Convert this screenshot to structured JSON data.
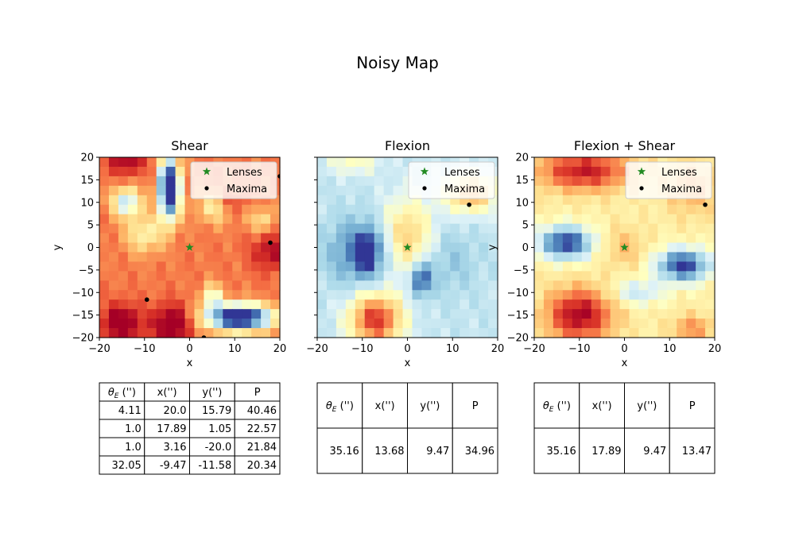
{
  "figure": {
    "title": "Noisy Map"
  },
  "chart_data": [
    {
      "type": "heatmap",
      "title": "Shear",
      "xlabel": "x",
      "ylabel": "y",
      "xlim": [
        -20,
        20
      ],
      "ylim": [
        -20,
        20
      ],
      "xticks": [
        "−20",
        "−10",
        "0",
        "10",
        "20"
      ],
      "yticks": [
        "20",
        "15",
        "10",
        "5",
        "0",
        "−5",
        "−10",
        "−15",
        "−20"
      ],
      "grid": false,
      "legend_position": "upper-right",
      "legend": [
        {
          "label": "Lenses",
          "marker": "star",
          "color": "#228b22"
        },
        {
          "label": "Maxima",
          "marker": "dot",
          "color": "#000000"
        }
      ],
      "lenses": [
        {
          "x": 0,
          "y": 0
        }
      ],
      "maxima": [
        {
          "x": 20.0,
          "y": 15.79
        },
        {
          "x": 17.89,
          "y": 1.05
        },
        {
          "x": 3.16,
          "y": -20.0
        },
        {
          "x": -9.47,
          "y": -11.58
        }
      ],
      "field": {
        "background": 0.78,
        "blobs": [
          {
            "x": -4.5,
            "y": 13,
            "sx": 1.6,
            "sy": 4.5,
            "a": -1.05
          },
          {
            "x": -14,
            "y": 10,
            "sx": 2.2,
            "sy": 2.2,
            "a": -0.45
          },
          {
            "x": 6,
            "y": 9,
            "sx": 3,
            "sy": 2.5,
            "a": -0.25
          },
          {
            "x": 11,
            "y": -15.5,
            "sx": 5,
            "sy": 2,
            "a": -0.95
          },
          {
            "x": 5,
            "y": -11,
            "sx": 1.5,
            "sy": 2,
            "a": -0.35
          },
          {
            "x": -4,
            "y": -17,
            "sx": 3,
            "sy": 3,
            "a": 0.3
          },
          {
            "x": -15,
            "y": -17,
            "sx": 3,
            "sy": 3,
            "a": 0.3
          },
          {
            "x": -14,
            "y": 19,
            "sx": 3,
            "sy": 2,
            "a": 0.22
          },
          {
            "x": 9,
            "y": 10,
            "sx": 2,
            "sy": 2,
            "a": 0.2
          },
          {
            "x": 18,
            "y": -1,
            "sx": 3,
            "sy": 3,
            "a": 0.2
          },
          {
            "x": -10,
            "y": 3,
            "sx": 3,
            "sy": 3,
            "a": -0.25
          },
          {
            "x": 16,
            "y": 6,
            "sx": 2,
            "sy": 2,
            "a": -0.2
          }
        ]
      },
      "table": {
        "columns": [
          "θE ('')",
          "x('')",
          "y('')",
          "P"
        ],
        "rows": [
          [
            "4.11",
            "20.0",
            "15.79",
            "40.46"
          ],
          [
            "1.0",
            "17.89",
            "1.05",
            "22.57"
          ],
          [
            "1.0",
            "3.16",
            "-20.0",
            "21.84"
          ],
          [
            "32.05",
            "-9.47",
            "-11.58",
            "20.34"
          ]
        ]
      }
    },
    {
      "type": "heatmap",
      "title": "Flexion",
      "xlabel": "x",
      "ylabel": "",
      "xlim": [
        -20,
        20
      ],
      "ylim": [
        -20,
        20
      ],
      "xticks": [
        "−20",
        "−10",
        "0",
        "10",
        "20"
      ],
      "yticks": [],
      "grid": false,
      "legend_position": "upper-right",
      "legend": [
        {
          "label": "Lenses",
          "marker": "star",
          "color": "#228b22"
        },
        {
          "label": "Maxima",
          "marker": "dot",
          "color": "#000000"
        }
      ],
      "lenses": [
        {
          "x": 0,
          "y": 0
        }
      ],
      "maxima": [
        {
          "x": 13.68,
          "y": 9.47
        }
      ],
      "field": {
        "background": 0.35,
        "blobs": [
          {
            "x": -10,
            "y": -1,
            "sx": 5,
            "sy": 5,
            "a": -0.25
          },
          {
            "x": -9,
            "y": -1,
            "sx": 1.5,
            "sy": 2.5,
            "a": -0.4
          },
          {
            "x": 3,
            "y": -7,
            "sx": 1.5,
            "sy": 2.5,
            "a": -0.35
          },
          {
            "x": 8,
            "y": -3,
            "sx": 5,
            "sy": 5,
            "a": -0.1
          },
          {
            "x": -7,
            "y": -16,
            "sx": 4,
            "sy": 4,
            "a": 0.55
          },
          {
            "x": 14,
            "y": 12,
            "sx": 4,
            "sy": 3,
            "a": 0.35
          },
          {
            "x": 0,
            "y": 2,
            "sx": 4,
            "sy": 6,
            "a": 0.32
          },
          {
            "x": -12,
            "y": 19,
            "sx": 4,
            "sy": 2,
            "a": 0.15
          }
        ]
      },
      "table": {
        "columns": [
          "θE ('')",
          "x('')",
          "y('')",
          "P"
        ],
        "rows": [
          [
            "35.16",
            "13.68",
            "9.47",
            "34.96"
          ]
        ]
      }
    },
    {
      "type": "heatmap",
      "title": "Flexion + Shear",
      "xlabel": "x",
      "ylabel": "y",
      "xlim": [
        -20,
        20
      ],
      "ylim": [
        -20,
        20
      ],
      "xticks": [
        "−20",
        "−10",
        "0",
        "10",
        "20"
      ],
      "yticks": [
        "20",
        "15",
        "10",
        "5",
        "0",
        "−5",
        "−10",
        "−15",
        "−20"
      ],
      "grid": false,
      "legend_position": "upper-right",
      "legend": [
        {
          "label": "Lenses",
          "marker": "star",
          "color": "#228b22"
        },
        {
          "label": "Maxima",
          "marker": "dot",
          "color": "#000000"
        }
      ],
      "lenses": [
        {
          "x": 0,
          "y": 0
        }
      ],
      "maxima": [
        {
          "x": 17.89,
          "y": 9.47
        }
      ],
      "field": {
        "background": 0.55,
        "blobs": [
          {
            "x": -10,
            "y": -15,
            "sx": 5,
            "sy": 4,
            "a": 0.45
          },
          {
            "x": -9,
            "y": 17,
            "sx": 7,
            "sy": 3,
            "a": 0.4
          },
          {
            "x": 15,
            "y": 13,
            "sx": 4,
            "sy": 4,
            "a": 0.15
          },
          {
            "x": 0,
            "y": 0,
            "sx": 3,
            "sy": 3,
            "a": 0.12
          },
          {
            "x": -13,
            "y": 1,
            "sx": 4,
            "sy": 2.5,
            "a": -0.55
          },
          {
            "x": 13,
            "y": -4,
            "sx": 4,
            "sy": 2.5,
            "a": -0.55
          },
          {
            "x": 3,
            "y": -10,
            "sx": 4,
            "sy": 2,
            "a": -0.2
          },
          {
            "x": 15,
            "y": -18,
            "sx": 3,
            "sy": 2,
            "a": 0.2
          }
        ]
      },
      "table": {
        "columns": [
          "θE ('')",
          "x('')",
          "y('')",
          "P"
        ],
        "rows": [
          [
            "35.16",
            "17.89",
            "9.47",
            "13.47"
          ]
        ]
      }
    }
  ]
}
